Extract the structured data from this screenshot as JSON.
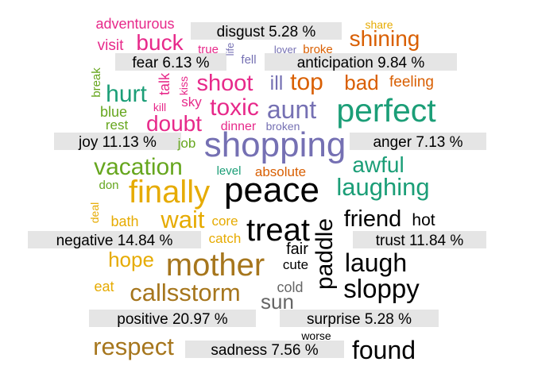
{
  "palette": {
    "anger": "#e7298a",
    "anticipation": "#d95f02",
    "disgust": "#7570b3",
    "fear": "#1b9e77",
    "joy": "#66a61e",
    "negative": "#e6ab02",
    "positive": "#a6761d",
    "sadness": "#000000",
    "surprise": "#666666",
    "label_box": "#e5e5e5"
  },
  "chart_data": {
    "type": "comparison-wordcloud",
    "categories": [
      {
        "key": "disgust",
        "label": "disgust 5.28 %"
      },
      {
        "key": "fear",
        "label": "fear 6.13 %"
      },
      {
        "key": "anticipation",
        "label": "anticipation 9.84 %"
      },
      {
        "key": "joy",
        "label": "joy 11.13 %"
      },
      {
        "key": "anger",
        "label": "anger 7.13 %"
      },
      {
        "key": "negative",
        "label": "negative 14.84 %"
      },
      {
        "key": "trust",
        "label": "trust 11.84 %"
      },
      {
        "key": "positive",
        "label": "positive 20.97 %"
      },
      {
        "key": "surprise",
        "label": "surprise 5.28 %"
      },
      {
        "key": "sadness",
        "label": "sadness 7.56 %"
      }
    ],
    "words": [
      {
        "text": "adventurous",
        "color": "#e7298a"
      },
      {
        "text": "visit",
        "color": "#e7298a"
      },
      {
        "text": "buck",
        "color": "#e7298a"
      },
      {
        "text": "true",
        "color": "#e7298a"
      },
      {
        "text": "life",
        "color": "#7570b3"
      },
      {
        "text": "lover",
        "color": "#7570b3"
      },
      {
        "text": "broke",
        "color": "#d95f02"
      },
      {
        "text": "share",
        "color": "#e6ab02"
      },
      {
        "text": "shining",
        "color": "#d95f02"
      },
      {
        "text": "fell",
        "color": "#7570b3"
      },
      {
        "text": "break",
        "color": "#66a61e"
      },
      {
        "text": "talk",
        "color": "#e7298a"
      },
      {
        "text": "kiss",
        "color": "#e7298a"
      },
      {
        "text": "hurt",
        "color": "#1b9e77"
      },
      {
        "text": "shoot",
        "color": "#e7298a"
      },
      {
        "text": "ill",
        "color": "#7570b3"
      },
      {
        "text": "top",
        "color": "#d95f02"
      },
      {
        "text": "bad",
        "color": "#d95f02"
      },
      {
        "text": "feeling",
        "color": "#d95f02"
      },
      {
        "text": "blue",
        "color": "#66a61e"
      },
      {
        "text": "kill",
        "color": "#e7298a"
      },
      {
        "text": "sky",
        "color": "#e7298a"
      },
      {
        "text": "toxic",
        "color": "#e7298a"
      },
      {
        "text": "aunt",
        "color": "#7570b3"
      },
      {
        "text": "perfect",
        "color": "#1b9e77"
      },
      {
        "text": "rest",
        "color": "#66a61e"
      },
      {
        "text": "doubt",
        "color": "#e7298a"
      },
      {
        "text": "dinner",
        "color": "#e7298a"
      },
      {
        "text": "broken",
        "color": "#7570b3"
      },
      {
        "text": "job",
        "color": "#66a61e"
      },
      {
        "text": "shopping",
        "color": "#7570b3"
      },
      {
        "text": "vacation",
        "color": "#66a61e"
      },
      {
        "text": "level",
        "color": "#1b9e77"
      },
      {
        "text": "absolute",
        "color": "#d95f02"
      },
      {
        "text": "awful",
        "color": "#1b9e77"
      },
      {
        "text": "don",
        "color": "#66a61e"
      },
      {
        "text": "finally",
        "color": "#e6ab02"
      },
      {
        "text": "peace",
        "color": "#000000"
      },
      {
        "text": "laughing",
        "color": "#1b9e77"
      },
      {
        "text": "deal",
        "color": "#e6ab02"
      },
      {
        "text": "bath",
        "color": "#e6ab02"
      },
      {
        "text": "wait",
        "color": "#e6ab02"
      },
      {
        "text": "core",
        "color": "#e6ab02"
      },
      {
        "text": "treat",
        "color": "#000000"
      },
      {
        "text": "friend",
        "color": "#000000"
      },
      {
        "text": "hot",
        "color": "#000000"
      },
      {
        "text": "catch",
        "color": "#e6ab02"
      },
      {
        "text": "paddle",
        "color": "#000000"
      },
      {
        "text": "fair",
        "color": "#000000"
      },
      {
        "text": "hope",
        "color": "#e6ab02"
      },
      {
        "text": "mother",
        "color": "#a6761d"
      },
      {
        "text": "cute",
        "color": "#000000"
      },
      {
        "text": "laugh",
        "color": "#000000"
      },
      {
        "text": "eat",
        "color": "#e6ab02"
      },
      {
        "text": "callsstorm",
        "color": "#a6761d"
      },
      {
        "text": "cold",
        "color": "#666666"
      },
      {
        "text": "sloppy",
        "color": "#000000"
      },
      {
        "text": "sun",
        "color": "#666666"
      },
      {
        "text": "worse",
        "color": "#000000"
      },
      {
        "text": "respect",
        "color": "#a6761d"
      },
      {
        "text": "found",
        "color": "#000000"
      }
    ]
  }
}
